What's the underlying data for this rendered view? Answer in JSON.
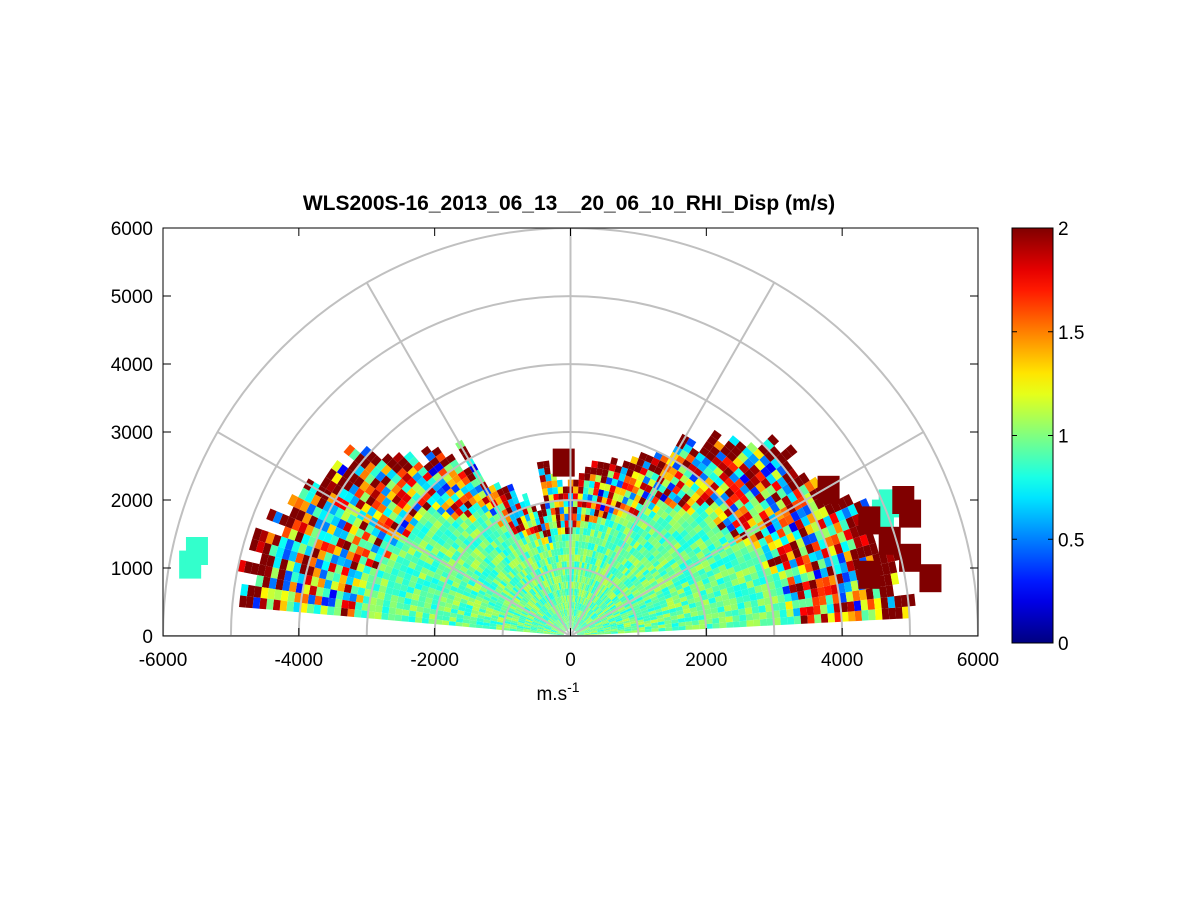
{
  "chart_data": {
    "type": "heatmap",
    "subtype": "polar-rhi",
    "title": "WLS200S-16_2013_06_13__20_06_10_RHI_Disp (m/s)",
    "xlabel": "m.s",
    "xlabel_superscript": "-1",
    "ylabel": "",
    "xlim": [
      -6000,
      6000
    ],
    "ylim": [
      0,
      6000
    ],
    "x_ticks": [
      -6000,
      -4000,
      -2000,
      0,
      2000,
      4000,
      6000
    ],
    "y_ticks": [
      0,
      1000,
      2000,
      3000,
      4000,
      5000,
      6000
    ],
    "x_tick_labels": [
      "-6000",
      "-4000",
      "-2000",
      "0",
      "2000",
      "4000",
      "6000"
    ],
    "y_tick_labels": [
      "0",
      "1000",
      "2000",
      "3000",
      "4000",
      "5000",
      "6000"
    ],
    "polar_grid": {
      "range_rings": [
        1000,
        2000,
        3000,
        4000,
        5000,
        6000
      ],
      "spokes_deg": [
        30,
        60,
        90,
        120,
        150,
        180
      ],
      "color": "#c0c0c0"
    },
    "colorbar": {
      "colormap": "jet",
      "range": [
        0,
        2
      ],
      "ticks": [
        0,
        0.5,
        1,
        1.5,
        2
      ],
      "tick_labels": [
        "0",
        "0.5",
        "1",
        "1.5",
        "2"
      ]
    },
    "scan": {
      "elevation_start_deg": 4,
      "elevation_end_deg": 176,
      "elevation_step_deg": 2,
      "range_gate_m": 100,
      "dominant_value": 0.95,
      "near_range_m": 2000,
      "far_range_m": 4700,
      "noisy_edge_value": 2.0
    },
    "isolated_echoes": [
      {
        "x": -5600,
        "y": 1050,
        "value": 0.85
      },
      {
        "x": -5500,
        "y": 1250,
        "value": 0.85
      },
      {
        "x": -100,
        "y": 2550,
        "value": 2.0
      },
      {
        "x": 4600,
        "y": 1800,
        "value": 0.85
      },
      {
        "x": 4700,
        "y": 1950,
        "value": 0.85
      },
      {
        "x": 4900,
        "y": 2000,
        "value": 2.0
      },
      {
        "x": 5000,
        "y": 1800,
        "value": 2.0
      },
      {
        "x": 5000,
        "y": 1150,
        "value": 2.0
      },
      {
        "x": 5300,
        "y": 850,
        "value": 2.0
      },
      {
        "x": 3800,
        "y": 2150,
        "value": 2.0
      },
      {
        "x": 4400,
        "y": 1700,
        "value": 2.0
      },
      {
        "x": 4700,
        "y": 1400,
        "value": 2.0
      },
      {
        "x": 4400,
        "y": 900,
        "value": 2.0
      }
    ]
  }
}
